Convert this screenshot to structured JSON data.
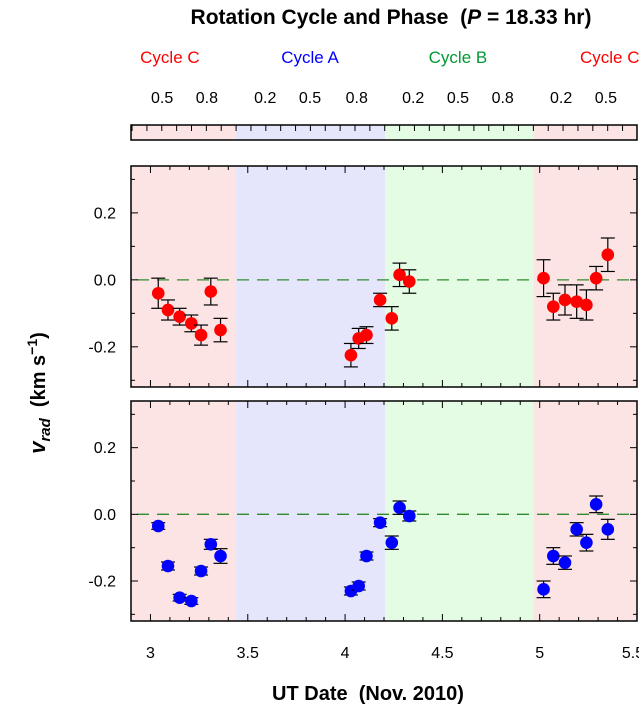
{
  "title_main": "Rotation Cycle and Phase",
  "title_paren_open": "(",
  "title_p": "P",
  "title_value": " = 18.33 hr)",
  "colors": {
    "cycle_c": "#ff0000",
    "cycle_a": "#0000ff",
    "cycle_b": "#009933",
    "band_c": "#fde4e4",
    "band_a": "#e5e5fb",
    "band_b": "#e4fce4",
    "zero_line": "#2e8b2e",
    "red_marker": "#ff0000",
    "blue_marker": "#0000ff"
  },
  "cycles": [
    {
      "label": "Cycle C",
      "x": 3.1,
      "color": "cycle_c"
    },
    {
      "label": "Cycle A",
      "x": 3.82,
      "color": "cycle_a"
    },
    {
      "label": "Cycle B",
      "x": 4.58,
      "color": "cycle_b"
    },
    {
      "label": "Cycle C",
      "x": 5.36,
      "color": "cycle_c"
    }
  ],
  "phase_labels": [
    {
      "label": "0.5",
      "x": 3.06
    },
    {
      "label": "0.8",
      "x": 3.29
    },
    {
      "label": "0.2",
      "x": 3.59
    },
    {
      "label": "0.5",
      "x": 3.82
    },
    {
      "label": "0.8",
      "x": 4.06
    },
    {
      "label": "0.2",
      "x": 4.35
    },
    {
      "label": "0.5",
      "x": 4.58
    },
    {
      "label": "0.8",
      "x": 4.81
    },
    {
      "label": "0.2",
      "x": 5.11
    },
    {
      "label": "0.5",
      "x": 5.34
    }
  ],
  "chart_data": {
    "type": "scatter",
    "xlabel": "UT Date  (Nov. 2010)",
    "ylabel_main": "v",
    "ylabel_sub": "rad",
    "ylabel_units_open": " (km s",
    "ylabel_units_sup": "−1",
    "ylabel_units_close": ")",
    "xlim": [
      2.9,
      5.5
    ],
    "ylim": [
      -0.32,
      0.34
    ],
    "x_ticks": [
      "3",
      "3.5",
      "4",
      "4.5",
      "5",
      "5.5"
    ],
    "y_ticks": [
      "0.2",
      "0.0",
      "-0.2"
    ],
    "period_hr": 18.33,
    "cycle_bands": [
      {
        "from": 2.9,
        "to": 3.44,
        "cycle": "C"
      },
      {
        "from": 3.44,
        "to": 4.205,
        "cycle": "A"
      },
      {
        "from": 4.205,
        "to": 4.968,
        "cycle": "B"
      },
      {
        "from": 4.968,
        "to": 5.5,
        "cycle": "C"
      }
    ],
    "reference_line": 0.0,
    "series": [
      {
        "x": [
          3.04,
          3.09,
          3.15,
          3.21,
          3.26,
          3.31,
          3.36,
          4.03,
          4.07,
          4.11,
          4.18,
          4.24,
          4.28,
          4.33,
          5.02,
          5.07,
          5.13,
          5.19,
          5.24,
          5.29,
          5.35
        ],
        "y": [
          -0.04,
          -0.09,
          -0.11,
          -0.13,
          -0.165,
          -0.035,
          -0.15,
          -0.225,
          -0.175,
          -0.165,
          -0.06,
          -0.115,
          0.015,
          -0.005,
          0.005,
          -0.08,
          -0.06,
          -0.065,
          -0.075,
          0.005,
          0.075
        ],
        "err": [
          0.045,
          0.03,
          0.025,
          0.025,
          0.03,
          0.04,
          0.035,
          0.035,
          0.03,
          0.025,
          0.02,
          0.035,
          0.035,
          0.035,
          0.055,
          0.04,
          0.045,
          0.05,
          0.045,
          0.035,
          0.05
        ]
      },
      {
        "x": [
          3.04,
          3.09,
          3.15,
          3.21,
          3.26,
          3.31,
          3.36,
          4.03,
          4.07,
          4.11,
          4.18,
          4.24,
          4.28,
          4.33,
          5.02,
          5.07,
          5.13,
          5.19,
          5.24,
          5.29,
          5.35
        ],
        "y": [
          -0.035,
          -0.155,
          -0.25,
          -0.26,
          -0.17,
          -0.09,
          -0.125,
          -0.23,
          -0.215,
          -0.125,
          -0.025,
          -0.085,
          0.02,
          -0.005,
          -0.225,
          -0.125,
          -0.145,
          -0.045,
          -0.085,
          0.03,
          -0.045
        ],
        "err": [
          0.01,
          0.012,
          0.01,
          0.01,
          0.012,
          0.015,
          0.022,
          0.012,
          0.012,
          0.012,
          0.012,
          0.02,
          0.02,
          0.015,
          0.025,
          0.025,
          0.02,
          0.02,
          0.025,
          0.025,
          0.03
        ]
      }
    ]
  }
}
